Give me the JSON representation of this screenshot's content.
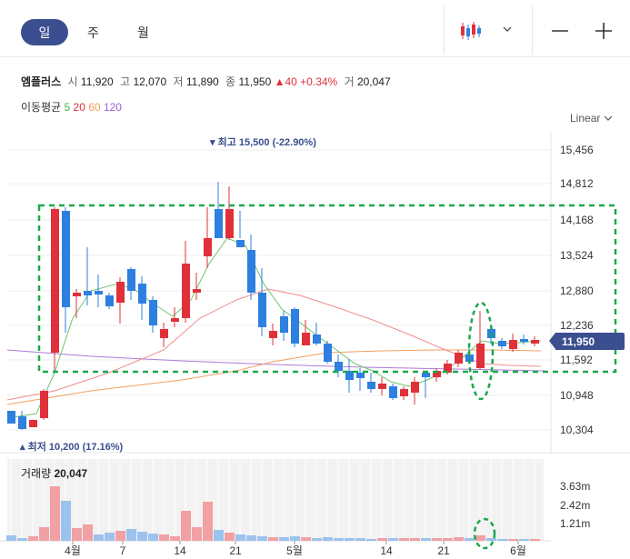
{
  "period_tabs": [
    "일",
    "주",
    "월"
  ],
  "active_tab": "일",
  "stock": {
    "name": "엠플러스",
    "open_label": "시",
    "open": "11,920",
    "high_label": "고",
    "high": "12,070",
    "low_label": "저",
    "low": "11,890",
    "close_label": "종",
    "close": "11,950",
    "change": "▲40",
    "change_pct": "+0.34%",
    "volume_label": "거",
    "volume": "20,047"
  },
  "moving_average": {
    "label": "이동평균",
    "periods": [
      "5",
      "20",
      "60",
      "120"
    ],
    "colors": [
      "#4caf50",
      "#e0313a",
      "#f0a060",
      "#a060d0"
    ]
  },
  "scale_label": "Linear",
  "price_axis": [
    "15,456",
    "14,812",
    "14,168",
    "13,524",
    "12,880",
    "12,236",
    "11,592",
    "10,948",
    "10,304"
  ],
  "current_price": "11,950",
  "high_marker": "최고 15,500 (-22.90%)",
  "low_marker": "최저 10,200 (17.16%)",
  "volume_panel": {
    "label": "거래량",
    "value": "20,047",
    "axis": [
      "3.63m",
      "2.42m",
      "1.21m"
    ]
  },
  "date_axis": [
    "4월",
    "7",
    "14",
    "21",
    "5월",
    "14",
    "21",
    "6월"
  ],
  "colors": {
    "up": "#e0313a",
    "down": "#2d7fe0",
    "accent": "#3b4e8f",
    "annotation": "#1aa84a"
  }
}
